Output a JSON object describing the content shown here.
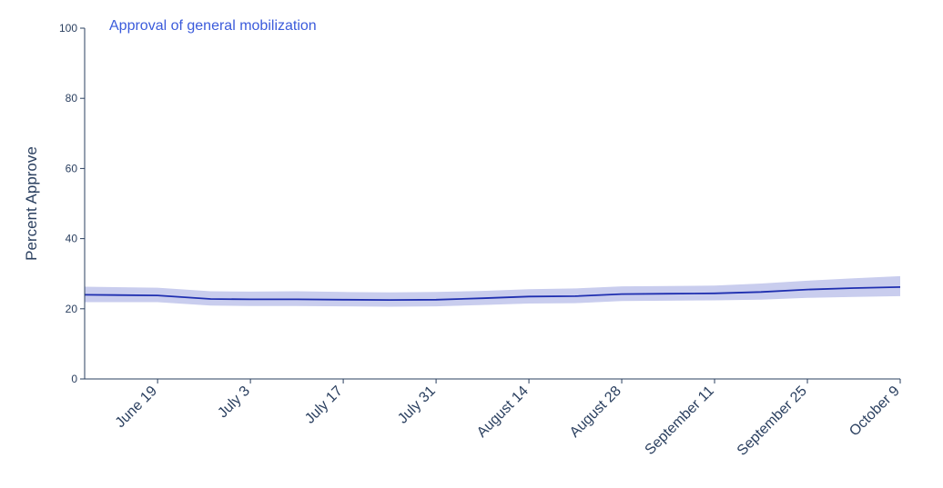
{
  "chart_data": {
    "type": "line",
    "title": "Approval of general mobilization",
    "xlabel": "",
    "ylabel": "Percent Approve",
    "ylim": [
      0,
      100
    ],
    "y_ticks": [
      "0",
      "20",
      "40",
      "60",
      "80",
      "100"
    ],
    "x_ticks": [
      {
        "label": "June 19",
        "date": "2022-06-19"
      },
      {
        "label": "July 3",
        "date": "2022-07-03"
      },
      {
        "label": "July 17",
        "date": "2022-07-17"
      },
      {
        "label": "July 31",
        "date": "2022-07-31"
      },
      {
        "label": "August 14",
        "date": "2022-08-14"
      },
      {
        "label": "August 28",
        "date": "2022-08-28"
      },
      {
        "label": "September 11",
        "date": "2022-09-11"
      },
      {
        "label": "September 25",
        "date": "2022-09-25"
      },
      {
        "label": "October 9",
        "date": "2022-10-09"
      }
    ],
    "xlim": [
      "2022-06-08",
      "2022-10-09"
    ],
    "grid": false,
    "colors": {
      "line": "#1f2fb0",
      "band": "#c9cdee",
      "title": "#3b5bdb",
      "axis": "#2a3f5f"
    },
    "series": [
      {
        "x": [
          "2022-06-08",
          "2022-06-19",
          "2022-06-27",
          "2022-07-03",
          "2022-07-10",
          "2022-07-17",
          "2022-07-24",
          "2022-07-31",
          "2022-08-07",
          "2022-08-14",
          "2022-08-21",
          "2022-08-28",
          "2022-09-04",
          "2022-09-11",
          "2022-09-18",
          "2022-09-25",
          "2022-10-02",
          "2022-10-09"
        ],
        "y": [
          24.0,
          23.8,
          22.8,
          22.7,
          22.7,
          22.6,
          22.5,
          22.6,
          23.0,
          23.5,
          23.6,
          24.2,
          24.3,
          24.4,
          24.8,
          25.5,
          25.9,
          26.2
        ],
        "lower": [
          21.9,
          21.9,
          20.9,
          20.8,
          20.8,
          20.7,
          20.6,
          20.7,
          21.1,
          21.5,
          21.6,
          22.2,
          22.3,
          22.4,
          22.6,
          23.1,
          23.4,
          23.6
        ],
        "upper": [
          26.3,
          26.0,
          25.0,
          24.9,
          25.0,
          24.8,
          24.7,
          24.8,
          25.1,
          25.6,
          25.8,
          26.4,
          26.5,
          26.6,
          27.2,
          28.0,
          28.7,
          29.3
        ]
      }
    ]
  }
}
